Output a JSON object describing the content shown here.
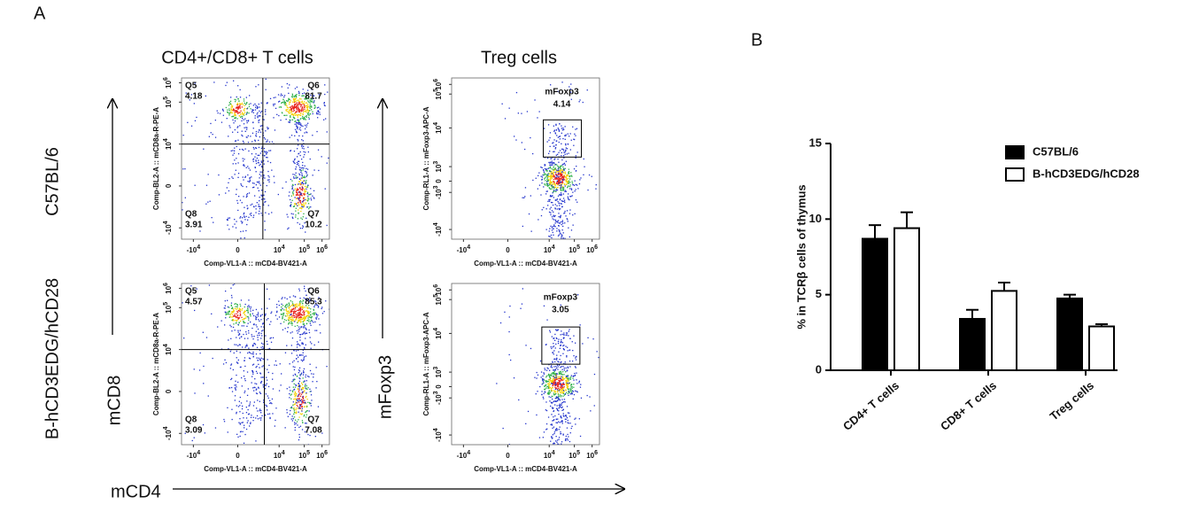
{
  "panel_a": {
    "label": "A",
    "column_titles": [
      "CD4+/CD8+ T cells",
      "Treg cells"
    ],
    "row_labels": [
      "C57BL/6",
      "B-hCD3EDG/hCD28"
    ],
    "axis_labels": {
      "cd8": "mCD8",
      "foxp3": "mFoxp3",
      "cd4": "mCD4"
    },
    "plots": [
      {
        "y_label": "Comp-BL2-A :: mCD8a-R-PE-A",
        "x_label": "Comp-VL1-A :: mCD4-BV421-A",
        "yticks": [
          {
            "base": "10",
            "exp": "6"
          },
          {
            "base": "10",
            "exp": "5"
          },
          {
            "base": "10",
            "exp": "4"
          },
          {
            "base": "0",
            "exp": ""
          },
          {
            "base": "-10",
            "exp": "4"
          }
        ],
        "xticks": [
          {
            "base": "-10",
            "exp": "4"
          },
          {
            "base": "0",
            "exp": ""
          },
          {
            "base": "10",
            "exp": "4"
          },
          {
            "base": "10",
            "exp": "5"
          },
          {
            "base": "10",
            "exp": "6"
          }
        ],
        "gates": [
          {
            "name": "Q5",
            "value": 4.18
          },
          {
            "name": "Q6",
            "value": 81.7
          },
          {
            "name": "Q8",
            "value": 3.91
          },
          {
            "name": "Q7",
            "value": 10.2
          }
        ]
      },
      {
        "y_label": "Comp-RL1-A :: mFoxp3-APC-A",
        "x_label": "Comp-VL1-A :: mCD4-BV421-A",
        "yticks": [
          {
            "base": "10",
            "exp": "6"
          },
          {
            "base": "10",
            "exp": "5"
          },
          {
            "base": "10",
            "exp": "4"
          },
          {
            "base": "10",
            "exp": "3"
          },
          {
            "base": "0",
            "exp": ""
          },
          {
            "base": "-10",
            "exp": "3"
          },
          {
            "base": "-10",
            "exp": "4"
          }
        ],
        "xticks": [
          {
            "base": "-10",
            "exp": "4"
          },
          {
            "base": "0",
            "exp": ""
          },
          {
            "base": "10",
            "exp": "4"
          },
          {
            "base": "10",
            "exp": "5"
          },
          {
            "base": "10",
            "exp": "6"
          }
        ],
        "gates": [
          {
            "name": "mFoxp3",
            "value": 4.14
          }
        ]
      },
      {
        "y_label": "Comp-BL2-A :: mCD8a-R-PE-A",
        "x_label": "Comp-VL1-A :: mCD4-BV421-A",
        "yticks": [
          {
            "base": "10",
            "exp": "6"
          },
          {
            "base": "10",
            "exp": "5"
          },
          {
            "base": "10",
            "exp": "4"
          },
          {
            "base": "0",
            "exp": ""
          },
          {
            "base": "-10",
            "exp": "4"
          }
        ],
        "xticks": [
          {
            "base": "-10",
            "exp": "4"
          },
          {
            "base": "0",
            "exp": ""
          },
          {
            "base": "10",
            "exp": "4"
          },
          {
            "base": "10",
            "exp": "5"
          },
          {
            "base": "10",
            "exp": "6"
          }
        ],
        "gates": [
          {
            "name": "Q5",
            "value": 4.57
          },
          {
            "name": "Q6",
            "value": 85.3
          },
          {
            "name": "Q8",
            "value": 3.09
          },
          {
            "name": "Q7",
            "value": 7.08
          }
        ]
      },
      {
        "y_label": "Comp-RL1-A :: mFoxp3-APC-A",
        "x_label": "Comp-VL1-A :: mCD4-BV421-A",
        "yticks": [
          {
            "base": "10",
            "exp": "6"
          },
          {
            "base": "10",
            "exp": "5"
          },
          {
            "base": "10",
            "exp": "4"
          },
          {
            "base": "10",
            "exp": "3"
          },
          {
            "base": "0",
            "exp": ""
          },
          {
            "base": "-10",
            "exp": "3"
          },
          {
            "base": "-10",
            "exp": "4"
          }
        ],
        "xticks": [
          {
            "base": "-10",
            "exp": "4"
          },
          {
            "base": "0",
            "exp": ""
          },
          {
            "base": "10",
            "exp": "4"
          },
          {
            "base": "10",
            "exp": "5"
          },
          {
            "base": "10",
            "exp": "6"
          }
        ],
        "gates": [
          {
            "name": "mFoxp3",
            "value": 3.05
          }
        ]
      }
    ]
  },
  "chart_data": {
    "type": "bar",
    "label": "B",
    "ylabel": "% in TCRβ cells of thymus",
    "categories": [
      "CD4+ T cells",
      "CD8+ T cells",
      "Treg cells"
    ],
    "series": [
      {
        "name": "C57BL/6",
        "color": "#000000",
        "values": [
          8.7,
          3.4,
          4.75
        ],
        "errors": [
          0.9,
          0.6,
          0.25
        ]
      },
      {
        "name": "B-hCD3EDG/hCD28",
        "color": "#ffffff",
        "values": [
          9.4,
          5.25,
          2.9
        ],
        "errors": [
          1.05,
          0.55,
          0.15
        ]
      }
    ],
    "ylim": [
      0,
      15
    ],
    "yticks": [
      0,
      5,
      10,
      15
    ]
  }
}
